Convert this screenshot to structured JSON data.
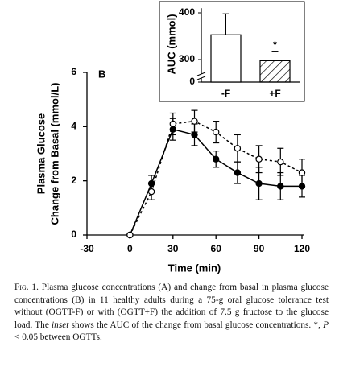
{
  "chart_data": [
    {
      "type": "line",
      "panel_label": "B",
      "ylabel": [
        "Plasma Glucose",
        "Change from Basal (mmol/L)"
      ],
      "xlabel": "Time (min)",
      "x": [
        0,
        15,
        30,
        45,
        60,
        75,
        90,
        105,
        120
      ],
      "series": [
        {
          "color": "#000000",
          "marker": "filled",
          "dashed": false,
          "values": [
            0,
            1.9,
            3.9,
            3.7,
            2.8,
            2.3,
            1.9,
            1.8,
            1.8
          ],
          "errors": [
            0,
            0.3,
            0.4,
            0.4,
            0.3,
            0.4,
            0.6,
            0.5,
            0.4
          ]
        },
        {
          "color": "#000000",
          "marker": "open",
          "dashed": true,
          "values": [
            0,
            1.6,
            4.1,
            4.2,
            3.8,
            3.2,
            2.8,
            2.7,
            2.3
          ],
          "errors": [
            0,
            0.3,
            0.4,
            0.4,
            0.4,
            0.5,
            0.5,
            0.5,
            0.5
          ]
        }
      ],
      "xlim": [
        -30,
        120
      ],
      "xticks": [
        -30,
        0,
        30,
        60,
        90,
        120
      ],
      "ylim": [
        0,
        6
      ],
      "yticks": [
        0,
        2,
        4,
        6
      ]
    },
    {
      "type": "bar",
      "ylabel": "AUC (mmol)",
      "categories": [
        "-F",
        "+F"
      ],
      "values": [
        353,
        285
      ],
      "errors": [
        45,
        33
      ],
      "hatch": [
        false,
        true
      ],
      "annotations": [
        null,
        "*"
      ],
      "color": "#ffffff",
      "axis_break": true,
      "ylim": [
        0,
        410
      ],
      "yticks": [
        0,
        300,
        400
      ]
    }
  ],
  "caption": [
    "Fig. 1.",
    " Plasma glucose concentrations (A) and change from basal in plasma glucose concentrations (B) in 11 healthy adults during a 75-g oral glucose tolerance test without (OGTT-F) or with (OGTT+F) the addition of 7.5 g fructose to the glucose load. The ",
    "inset",
    " shows the AUC of the change from basal glucose concentrations. *, ",
    "P",
    " < 0.05 between OGTTs."
  ]
}
